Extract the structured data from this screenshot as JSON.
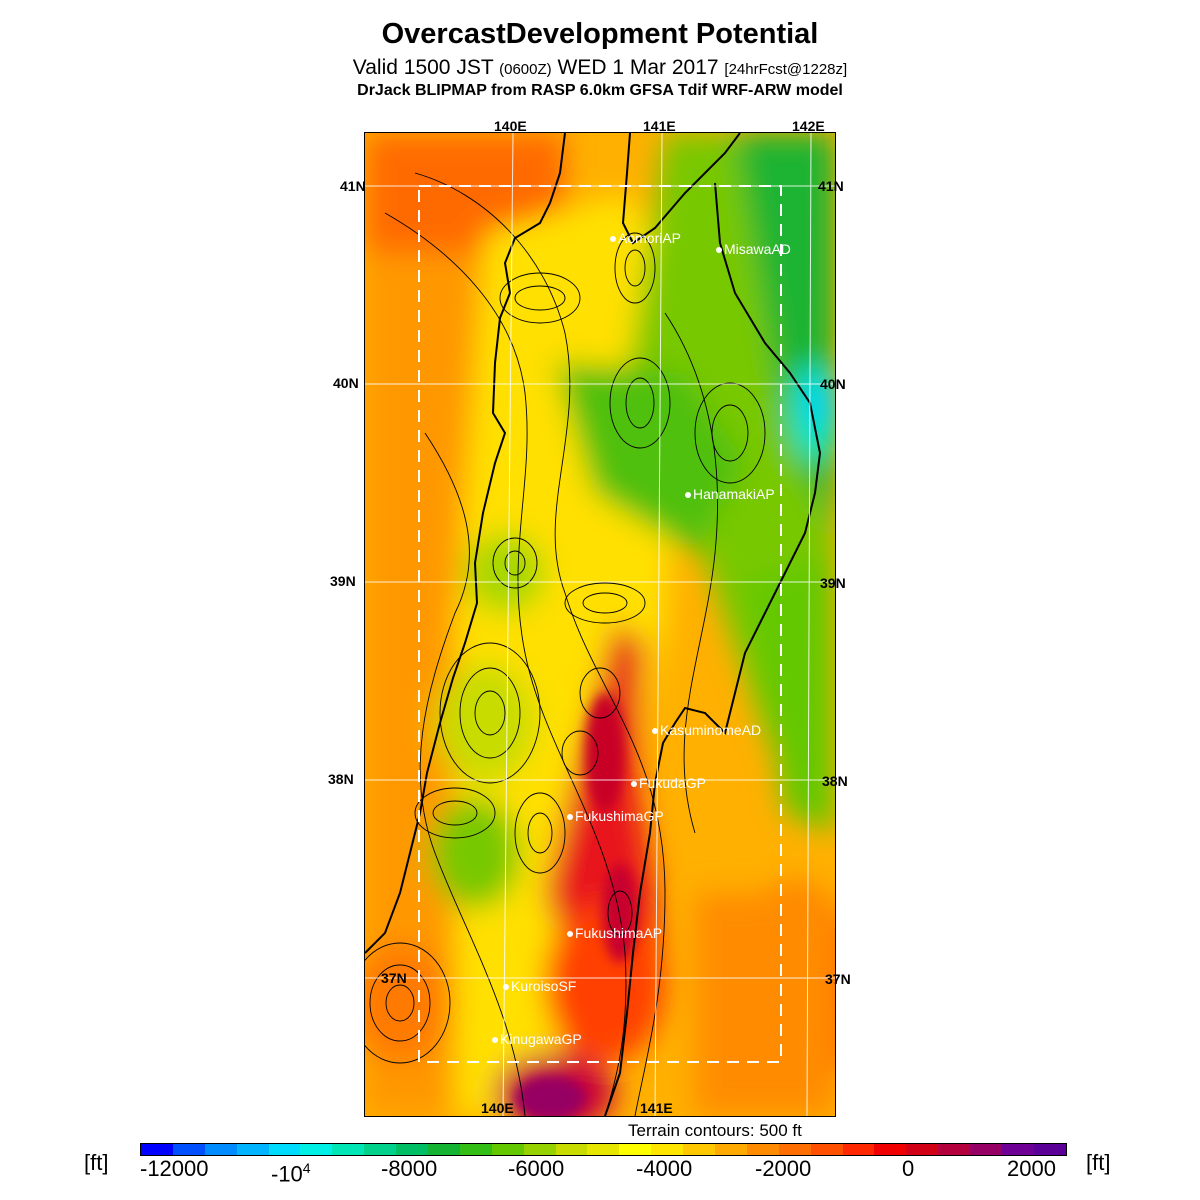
{
  "header": {
    "title": "OvercastDevelopment Potential",
    "valid_prefix": "Valid 1500 JST",
    "valid_zulu": "(0600Z)",
    "valid_date": "WED 1 Mar 2017",
    "forecast": "[24hrFcst@1228z]",
    "model": "DrJack BLIPMAP from RASP 6.0km GFSA Tdif WRF-ARW model"
  },
  "map": {
    "lat_labels": [
      "41N",
      "40N",
      "39N",
      "38N",
      "37N"
    ],
    "lon_labels_top": [
      "140E",
      "141E",
      "142E"
    ],
    "lon_labels_bottom": [
      "140E",
      "141E"
    ],
    "stations": [
      "AomoriAP",
      "MisawaAD",
      "HanamakiAP",
      "KasuminomeAD",
      "FukudaGP",
      "FukushimaGP",
      "FukushimaAP",
      "KuroisoSF",
      "KinugawaGP"
    ],
    "terrain_note": "Terrain contours: 500 ft"
  },
  "legend": {
    "unit_left": "[ft]",
    "unit_right": "[ft]",
    "tick_labels": [
      "-12000",
      "-10",
      "-8000",
      "-6000",
      "-4000",
      "-2000",
      "0",
      "2000"
    ],
    "tick_superscript": "4",
    "colors": [
      "#0000ff",
      "#0050ff",
      "#008cff",
      "#00b4ff",
      "#00dcff",
      "#00f0e6",
      "#00e6b4",
      "#00d28c",
      "#00be64",
      "#14b432",
      "#32be14",
      "#64c800",
      "#96d200",
      "#c8dc00",
      "#e6e600",
      "#ffff00",
      "#ffe600",
      "#ffc800",
      "#ffaa00",
      "#ff8c00",
      "#ff6e00",
      "#ff5000",
      "#ff2800",
      "#f00000",
      "#d20014",
      "#b4003c",
      "#960064",
      "#6e0096",
      "#5a0096"
    ]
  }
}
